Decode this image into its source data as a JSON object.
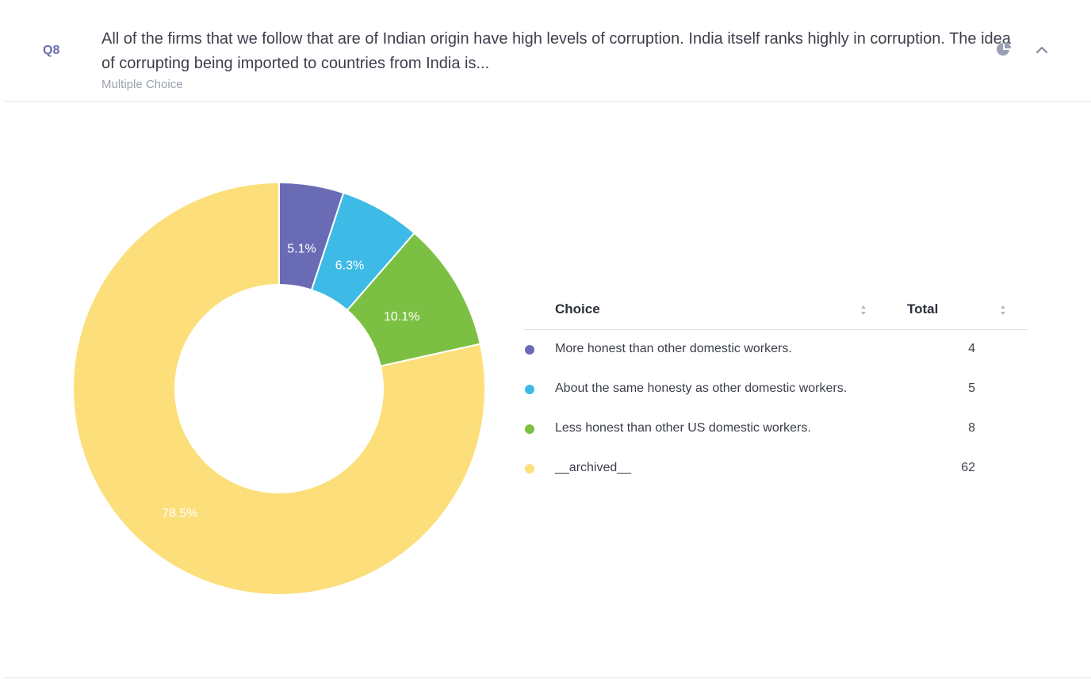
{
  "question": {
    "number": "Q8",
    "text": "All of the firms that we follow that are of Indian origin have high levels of corruption. India itself ranks highly in corruption. The idea of corrupting being imported to countries from India is...",
    "type": "Multiple Choice"
  },
  "icons": {
    "chart_type": "pie-chart-icon",
    "collapse": "chevron-up-icon"
  },
  "table": {
    "col_choice": "Choice",
    "col_total": "Total"
  },
  "chart_data": {
    "type": "pie",
    "donut": true,
    "categories": [
      "More honest than other domestic workers.",
      "About the same honesty as other domestic workers.",
      "Less honest than other US domestic workers.",
      "__archived__"
    ],
    "values": [
      4,
      5,
      8,
      62
    ],
    "percent_labels": [
      "5.1%",
      "6.3%",
      "10.1%",
      "78.5%"
    ],
    "colors": [
      "#6a6bb5",
      "#3dbbe6",
      "#7cc043",
      "#fcdf7a"
    ],
    "legend": "right"
  }
}
